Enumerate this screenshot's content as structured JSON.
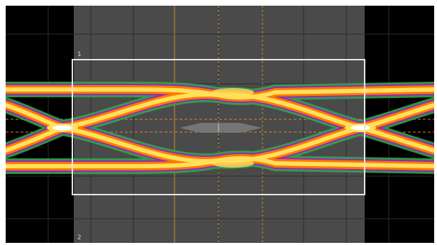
{
  "scope": {
    "mask_label_top": "1",
    "mask_label_bottom": "2",
    "cursor_label_left": "",
    "cursor_label_top": "",
    "cursor_label_bottom": ""
  },
  "colors": {
    "background": "#000000",
    "shaded_region": "#4a4a4a",
    "mask_border": "#e6e6e6",
    "cursor": "#d0892a",
    "grid": "#303030",
    "trace_outer": "#2fa64a",
    "trace_mid": "#a020c0",
    "trace_core": "#ff7a00",
    "trace_hot": "#ffe05a",
    "trace_peak": "#ffffff"
  }
}
